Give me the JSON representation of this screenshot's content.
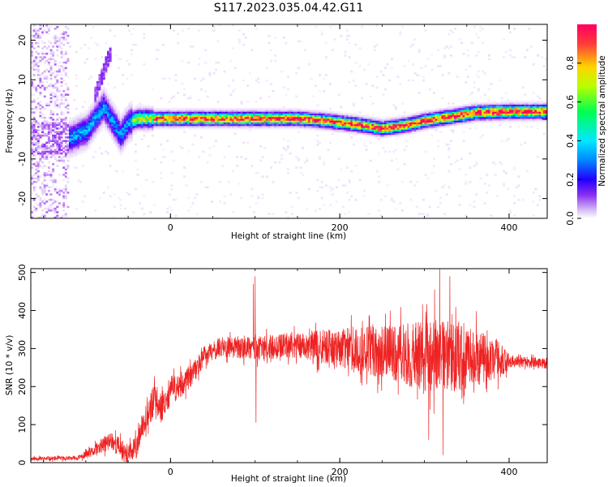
{
  "title": "S117.2023.035.04.42.G11",
  "colors": {
    "snr_line": "#ee2222",
    "colormap": [
      "#ffffff",
      "#e0c8f8",
      "#9a3cf0",
      "#4400ff",
      "#0080ff",
      "#00e8ff",
      "#00ff66",
      "#c8ff00",
      "#ffd000",
      "#ff4040",
      "#ff0066"
    ]
  },
  "chart_data": [
    {
      "type": "heatmap",
      "xlabel": "Height of straight line (km)",
      "ylabel": "Frequency (Hz)",
      "xlim": [
        -165,
        445
      ],
      "ylim": [
        -25,
        24
      ],
      "xticks": [
        0,
        200,
        400
      ],
      "yticks": [
        -20,
        -10,
        0,
        10,
        20
      ],
      "grid": false,
      "colorbar": {
        "label": "Normalized spectral amplitude",
        "range": [
          0,
          1
        ],
        "ticks": [
          0.0,
          0.2,
          0.4,
          0.6,
          0.8
        ]
      },
      "ridge": [
        {
          "x": -165,
          "y": -5
        },
        {
          "x": -120,
          "y": -5
        },
        {
          "x": -100,
          "y": -3
        },
        {
          "x": -80,
          "y": 3
        },
        {
          "x": -60,
          "y": -4
        },
        {
          "x": -50,
          "y": -1
        },
        {
          "x": -40,
          "y": 0
        },
        {
          "x": -20,
          "y": 0
        },
        {
          "x": 0,
          "y": 0
        },
        {
          "x": 100,
          "y": 0
        },
        {
          "x": 150,
          "y": 0
        },
        {
          "x": 180,
          "y": -0.5
        },
        {
          "x": 200,
          "y": -1
        },
        {
          "x": 220,
          "y": -1.5
        },
        {
          "x": 250,
          "y": -2.5
        },
        {
          "x": 280,
          "y": -1.5
        },
        {
          "x": 300,
          "y": -0.5
        },
        {
          "x": 330,
          "y": 0.5
        },
        {
          "x": 360,
          "y": 1.5
        },
        {
          "x": 400,
          "y": 1.8
        },
        {
          "x": 445,
          "y": 1.8
        }
      ]
    },
    {
      "type": "line",
      "xlabel": "Height of straight line (km)",
      "ylabel": "SNR (10 * v/v)",
      "xlim": [
        -165,
        445
      ],
      "ylim": [
        0,
        510
      ],
      "xticks": [
        0,
        200,
        400
      ],
      "yticks": [
        0,
        100,
        200,
        300,
        400,
        500
      ],
      "grid": false,
      "series": [
        {
          "trend": [
            {
              "x": -165,
              "y": 10
            },
            {
              "x": -110,
              "y": 12
            },
            {
              "x": -90,
              "y": 30
            },
            {
              "x": -70,
              "y": 60
            },
            {
              "x": -50,
              "y": 20
            },
            {
              "x": -40,
              "y": 40
            },
            {
              "x": -30,
              "y": 120
            },
            {
              "x": -20,
              "y": 160
            },
            {
              "x": -10,
              "y": 150
            },
            {
              "x": 0,
              "y": 190
            },
            {
              "x": 10,
              "y": 200
            },
            {
              "x": 25,
              "y": 230
            },
            {
              "x": 40,
              "y": 280
            },
            {
              "x": 60,
              "y": 305
            },
            {
              "x": 100,
              "y": 300
            },
            {
              "x": 150,
              "y": 310
            },
            {
              "x": 200,
              "y": 300
            },
            {
              "x": 250,
              "y": 290
            },
            {
              "x": 300,
              "y": 280
            },
            {
              "x": 340,
              "y": 280
            },
            {
              "x": 380,
              "y": 275
            },
            {
              "x": 400,
              "y": 265
            },
            {
              "x": 445,
              "y": 262
            }
          ],
          "noise": [
            {
              "x": -165,
              "y": 5
            },
            {
              "x": -110,
              "y": 6
            },
            {
              "x": -70,
              "y": 25
            },
            {
              "x": -40,
              "y": 30
            },
            {
              "x": -20,
              "y": 45
            },
            {
              "x": 40,
              "y": 25
            },
            {
              "x": 150,
              "y": 35
            },
            {
              "x": 250,
              "y": 70
            },
            {
              "x": 300,
              "y": 95
            },
            {
              "x": 340,
              "y": 95
            },
            {
              "x": 390,
              "y": 50
            },
            {
              "x": 400,
              "y": 15
            },
            {
              "x": 445,
              "y": 15
            }
          ],
          "spikes": [
            {
              "x": 100,
              "y": 490
            },
            {
              "x": 101,
              "y": 105
            },
            {
              "x": 98,
              "y": 470
            },
            {
              "x": 318,
              "y": 510
            },
            {
              "x": 322,
              "y": 20
            },
            {
              "x": 330,
              "y": 490
            },
            {
              "x": 305,
              "y": 60
            },
            {
              "x": 312,
              "y": 455
            }
          ]
        }
      ]
    }
  ]
}
